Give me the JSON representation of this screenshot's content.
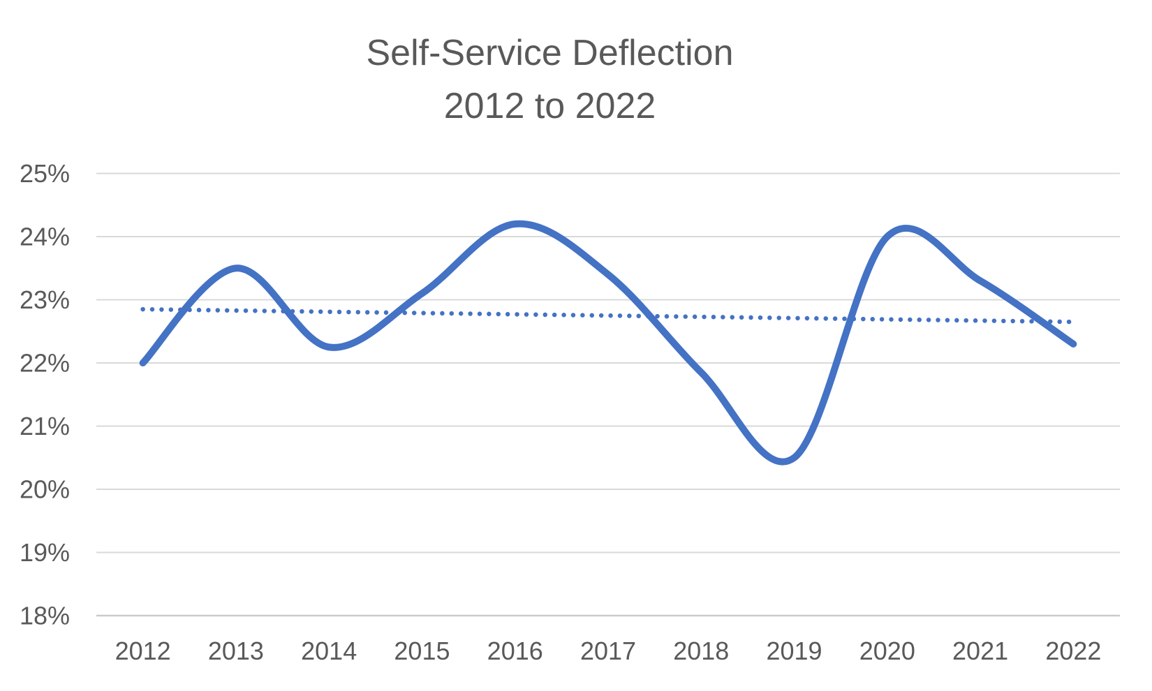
{
  "title": {
    "line1": "Self-Service Deflection",
    "line2": "2012 to 2022"
  },
  "chart_data": {
    "type": "line",
    "title": "Self-Service Deflection 2012 to 2022",
    "x": [
      "2012",
      "2013",
      "2014",
      "2015",
      "2016",
      "2017",
      "2018",
      "2019",
      "2020",
      "2021",
      "2022"
    ],
    "series": [
      {
        "name": "Self-Service Deflection",
        "style": "smooth-solid",
        "values": [
          22.0,
          23.5,
          22.25,
          23.1,
          24.2,
          23.4,
          21.85,
          20.5,
          24.0,
          23.3,
          22.3
        ]
      },
      {
        "name": "Linear trend",
        "style": "dotted",
        "values": [
          22.85,
          22.83,
          22.81,
          22.79,
          22.77,
          22.75,
          22.73,
          22.71,
          22.69,
          22.67,
          22.65
        ]
      }
    ],
    "y_ticks": [
      "25%",
      "24%",
      "23%",
      "22%",
      "21%",
      "20%",
      "19%",
      "18%"
    ],
    "y_tick_values": [
      25,
      24,
      23,
      22,
      21,
      20,
      19,
      18
    ],
    "ylim": [
      18,
      25
    ],
    "xlabel": "",
    "ylabel": "",
    "grid": "horizontal",
    "legend": "none"
  },
  "colors": {
    "line": "#4472C4",
    "trendline": "#4472C4",
    "gridline": "#D9D9D9",
    "axis_line": "#C9C9C9",
    "text": "#595959",
    "background": "#FFFFFF"
  }
}
